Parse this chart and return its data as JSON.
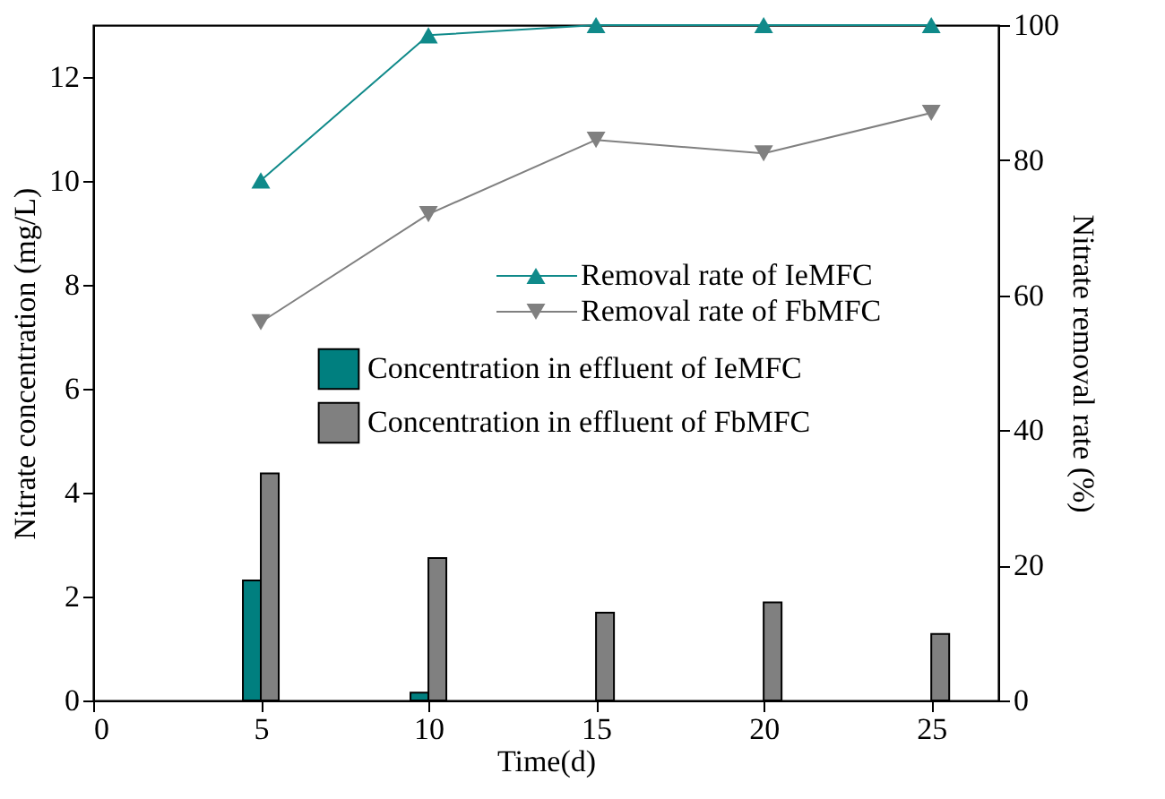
{
  "chart_data": {
    "type": "bar",
    "xlabel": "Time(d)",
    "ylabel": "Nitrate concentration (mg/L)",
    "y2label": "Nitrate removal rate (%)",
    "x": [
      5,
      10,
      15,
      20,
      25
    ],
    "xlim": [
      0,
      27
    ],
    "xticks": [
      0,
      5,
      10,
      15,
      20,
      25
    ],
    "ylim": [
      0,
      13
    ],
    "yticks": [
      0,
      2,
      4,
      6,
      8,
      10,
      12
    ],
    "y2lim": [
      0,
      100
    ],
    "y2ticks": [
      0,
      20,
      40,
      60,
      80,
      100
    ],
    "legend": "right",
    "grid": false,
    "series": [
      {
        "name": "Concentration in effluent of IeMFC",
        "color": "#007f7f",
        "values": [
          2.31,
          0.15,
          null,
          null,
          null
        ]
      },
      {
        "name": "Concentration in effluent of FbMFC",
        "color": "#808080",
        "values": [
          4.37,
          2.74,
          1.69,
          1.89,
          1.28
        ]
      },
      {
        "name": "Removal rate of IeMFC",
        "type": "line",
        "axis": "y2",
        "marker": "triangle-up",
        "color": "#108a8a",
        "values": [
          77,
          98.5,
          100,
          100,
          100
        ]
      },
      {
        "name": "Removal rate of FbMFC",
        "type": "line",
        "axis": "y2",
        "marker": "triangle-down",
        "color": "#808080",
        "values": [
          56,
          72,
          83,
          81,
          87
        ]
      }
    ]
  }
}
